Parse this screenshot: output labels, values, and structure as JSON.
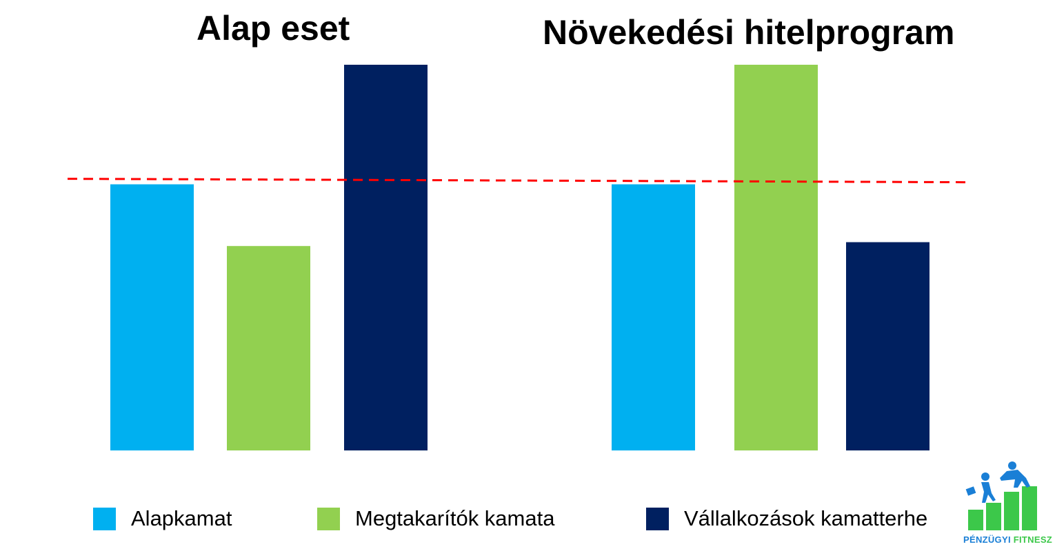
{
  "chart_data": [
    {
      "type": "bar",
      "title": "Alap eset",
      "categories": [
        "Alapkamat",
        "Megtakarítók kamata",
        "Vállalkozások kamatterhe"
      ],
      "values": [
        69,
        53,
        100
      ],
      "reference_line": {
        "value": 69,
        "style": "dashed",
        "color": "#ff0000"
      },
      "ylim": [
        0,
        100
      ],
      "grid": false
    },
    {
      "type": "bar",
      "title": "Növekedési hitelprogram",
      "categories": [
        "Alapkamat",
        "Megtakarítók kamata",
        "Vállalkozások kamatterhe"
      ],
      "values": [
        69,
        100,
        54
      ],
      "reference_line": {
        "value": 69,
        "style": "dashed",
        "color": "#ff0000"
      },
      "ylim": [
        0,
        100
      ],
      "grid": false
    }
  ],
  "legend": {
    "placement": "bottom",
    "items": [
      {
        "label": "Alapkamat",
        "color": "#00b0f0"
      },
      {
        "label": "Megtakarítók kamata",
        "color": "#92d050"
      },
      {
        "label": "Vállalkozások kamatterhe",
        "color": "#002060"
      }
    ]
  },
  "logo": {
    "text_part1": "PÉNZÜGYI",
    "text_part2": "FITNESZ",
    "icon": "stairs-climbers-icon"
  }
}
